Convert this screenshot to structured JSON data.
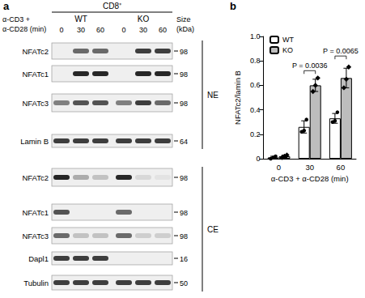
{
  "panel_a": {
    "label": "a",
    "header": {
      "group": "CD8⁺",
      "genotypes": [
        "WT",
        "KO"
      ],
      "treatment": [
        "α-CD3 +",
        "α-CD28 (min)"
      ],
      "lanes": [
        0,
        30,
        60,
        0,
        30,
        60
      ],
      "size": [
        "Size",
        "(kDa)"
      ]
    },
    "fractions": [
      {
        "name": "NE",
        "rows": [
          {
            "protein": "NFATc2",
            "kDa": 98,
            "bands": [
              0,
              0.6,
              0.6,
              0,
              0.8,
              0.8
            ]
          },
          {
            "protein": "NFATc1",
            "kDa": 98,
            "bands": [
              0,
              0.9,
              0.9,
              0,
              0.9,
              0.9
            ]
          },
          {
            "protein": "NFATc3",
            "kDa": 98,
            "bands": [
              0.5,
              0.7,
              0.7,
              0.5,
              0.8,
              0.6
            ]
          },
          {
            "protein": "Lamin B",
            "kDa": 64,
            "bands": [
              0.8,
              0.8,
              0.8,
              0.8,
              0.8,
              0.8
            ]
          }
        ]
      },
      {
        "name": "CE",
        "rows": [
          {
            "protein": "NFATc2",
            "kDa": 98,
            "bands": [
              0.9,
              0.3,
              0.2,
              0.9,
              0.1,
              0.05
            ]
          },
          {
            "protein": "NFATc1",
            "kDa": 98,
            "bands": [
              0.7,
              0,
              0,
              0.6,
              0,
              0
            ]
          },
          {
            "protein": "NFATc3",
            "kDa": 98,
            "bands": [
              0.6,
              0.2,
              0.2,
              0.6,
              0.15,
              0.15
            ]
          },
          {
            "protein": "Dapl1",
            "kDa": 16,
            "bands": [
              0.8,
              0.8,
              0.8,
              0,
              0,
              0
            ]
          },
          {
            "protein": "Tubulin",
            "kDa": 50,
            "bands": [
              0.8,
              0.8,
              0.8,
              0.8,
              0.8,
              0.8
            ]
          }
        ]
      }
    ]
  },
  "chart_data": {
    "type": "bar",
    "label": "b",
    "y_label": "NFATc2/lamin B",
    "x_label": "α-CD3 + α-CD28 (min)",
    "categories": [
      "0",
      "30",
      "60"
    ],
    "ylim": [
      0,
      1
    ],
    "yticks": [
      0,
      0.2,
      0.4,
      0.6,
      0.8,
      {
        "value": 1,
        "label": "1.0"
      }
    ],
    "grid": false,
    "legend": "upper left",
    "series": [
      {
        "name": "WT",
        "color": "#ffffff",
        "marker": "circle",
        "values": [
          0.01,
          0.26,
          0.33
        ],
        "errors": [
          0.01,
          0.05,
          0.04
        ],
        "points": [
          [
            0,
            0.01,
            0.02
          ],
          [
            0.22,
            0.23,
            0.32
          ],
          [
            0.3,
            0.31,
            0.38
          ]
        ]
      },
      {
        "name": "KO",
        "color": "#bdbdbd",
        "marker": "diamond",
        "values": [
          0.02,
          0.6,
          0.66
        ],
        "errors": [
          0.01,
          0.05,
          0.08
        ],
        "points": [
          [
            0.01,
            0.02,
            0.03
          ],
          [
            0.55,
            0.6,
            0.66
          ],
          [
            0.58,
            0.65,
            0.75
          ]
        ]
      }
    ],
    "annotations": [
      {
        "text": "P = 0.0036",
        "category": "30"
      },
      {
        "text": "P = 0.0065",
        "category": "60"
      }
    ]
  }
}
